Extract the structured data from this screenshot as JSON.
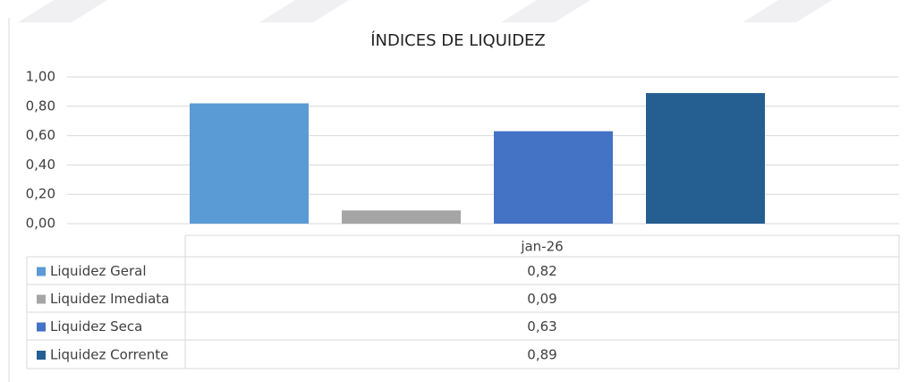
{
  "chart_data": {
    "type": "bar",
    "title": "ÍNDICES DE LIQUIDEZ",
    "categories": [
      "jan-26"
    ],
    "series": [
      {
        "name": "Liquidez Geral",
        "color": "#5b9bd5",
        "values": [
          0.82
        ],
        "value_labels": [
          "0,82"
        ]
      },
      {
        "name": "Liquidez Imediata",
        "color": "#a5a5a5",
        "values": [
          0.09
        ],
        "value_labels": [
          "0,09"
        ]
      },
      {
        "name": "Liquidez Seca",
        "color": "#4472c4",
        "values": [
          0.63
        ],
        "value_labels": [
          "0,63"
        ]
      },
      {
        "name": "Liquidez Corrente",
        "color": "#255e91",
        "values": [
          0.89
        ],
        "value_labels": [
          "0,89"
        ]
      }
    ],
    "ylim": [
      0,
      1
    ],
    "yticks": [
      {
        "value": 0,
        "label": "0,00"
      },
      {
        "value": 0.2,
        "label": "0,20"
      },
      {
        "value": 0.4,
        "label": "0,40"
      },
      {
        "value": 0.6,
        "label": "0,60"
      },
      {
        "value": 0.8,
        "label": "0,80"
      },
      {
        "value": 1,
        "label": "1,00"
      }
    ],
    "grid": true,
    "legend": "table"
  }
}
